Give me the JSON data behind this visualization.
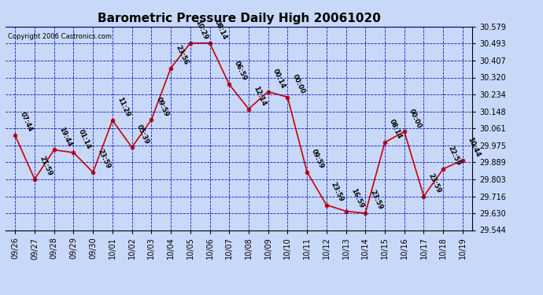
{
  "title": "Barometric Pressure Daily High 20061020",
  "copyright": "Copyright 2006 Castronics.com",
  "background_color": "#c8d8f8",
  "plot_bg_color": "#c8d8f8",
  "line_color": "#cc0000",
  "marker_color": "#cc0000",
  "grid_color": "#0000bb",
  "ylim_min": 29.544,
  "ylim_max": 30.579,
  "yticks": [
    29.544,
    29.63,
    29.716,
    29.803,
    29.889,
    29.975,
    30.061,
    30.148,
    30.234,
    30.32,
    30.407,
    30.493,
    30.579
  ],
  "dates": [
    "09/26",
    "09/27",
    "09/28",
    "09/29",
    "09/30",
    "10/01",
    "10/02",
    "10/03",
    "10/04",
    "10/05",
    "10/06",
    "10/07",
    "10/08",
    "10/09",
    "10/10",
    "10/11",
    "10/12",
    "10/13",
    "10/14",
    "10/15",
    "10/16",
    "10/17",
    "10/18",
    "10/19"
  ],
  "values": [
    30.025,
    29.803,
    29.952,
    29.938,
    29.838,
    30.102,
    29.965,
    30.105,
    30.368,
    30.495,
    30.495,
    30.285,
    30.16,
    30.248,
    30.22,
    29.84,
    29.672,
    29.64,
    29.63,
    29.99,
    30.045,
    29.716,
    29.855,
    29.9
  ],
  "time_labels": [
    "07:44",
    "21:59",
    "19:44",
    "01:14",
    "23:59",
    "11:29",
    "05:39",
    "09:59",
    "23:56",
    "10:29",
    "08:14",
    "06:59",
    "12:14",
    "00:14",
    "00:00",
    "09:59",
    "23:59",
    "16:59",
    "23:59",
    "08:14",
    "00:00",
    "23:59",
    "22:59",
    "10:44"
  ],
  "title_fontsize": 11,
  "tick_fontsize": 7,
  "label_fontsize": 6,
  "copyright_fontsize": 6
}
